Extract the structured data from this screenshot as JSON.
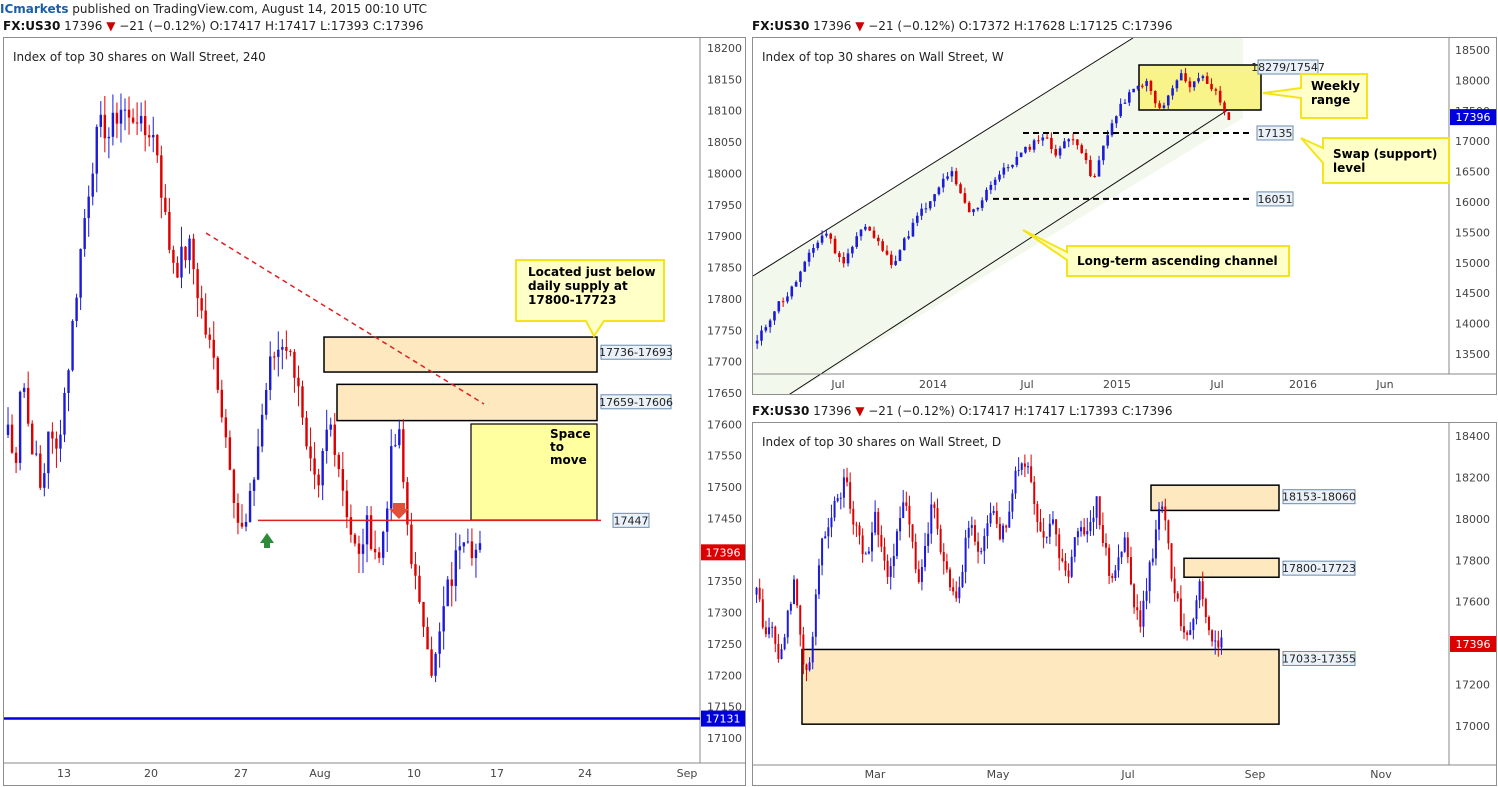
{
  "header": {
    "brand": "ICmarkets",
    "published": "published on TradingView.com, August 14, 2015 00:10 UTC"
  },
  "colors": {
    "bull": "#1c1cd8",
    "bear": "#dd0000",
    "zone_fill": "#fde8c0",
    "note_fill": "#ffffa0",
    "note_border": "#f4e41c",
    "channel_fill": "#f2f9ec",
    "blue_line": "#0000dd"
  },
  "panels": [
    {
      "id": "h4",
      "quote": {
        "symbol": "FX:US30",
        "price": "17396",
        "change": "−21 (−0.12%)",
        "o": "O:17417",
        "h": "H:17417",
        "l": "L:17393",
        "c": "C:17396"
      },
      "title": "Index of top 30 shares on Wall Street, 240",
      "price_badge": "17396",
      "level_badge": "17131"
    },
    {
      "id": "weekly",
      "quote": {
        "symbol": "FX:US30",
        "price": "17396",
        "change": "−21 (−0.12%)",
        "o": "O:17372",
        "h": "H:17628",
        "l": "L:17125",
        "c": "C:17396"
      },
      "title": "Index of top 30 shares on Wall Street, W",
      "price_badge": "17396"
    },
    {
      "id": "daily",
      "quote": {
        "symbol": "FX:US30",
        "price": "17396",
        "change": "−21 (−0.12%)",
        "o": "O:17417",
        "h": "H:17417",
        "l": "L:17393",
        "c": "C:17396"
      },
      "title": "Index of top 30 shares on Wall Street, D",
      "price_badge": "17396"
    }
  ],
  "chart_data": [
    {
      "type": "candlestick",
      "title": "Index of top 30 shares on Wall Street, 240",
      "x_ticks": [
        "13",
        "20",
        "27",
        "Aug",
        "10",
        "17",
        "24",
        "Sep"
      ],
      "y_ticks": [
        18200,
        18150,
        18100,
        18050,
        18000,
        17950,
        17900,
        17850,
        17800,
        17750,
        17700,
        17650,
        17600,
        17550,
        17500,
        17450,
        17400,
        17350,
        17300,
        17250,
        17200,
        17150,
        17100
      ],
      "ylim": [
        17070,
        18220
      ],
      "zones": [
        {
          "label": "17736-17693",
          "low": 17693,
          "high": 17736
        },
        {
          "label": "17659-17606",
          "low": 17606,
          "high": 17659
        }
      ],
      "levels": [
        {
          "label": "17447",
          "value": 17447,
          "style": "red"
        },
        {
          "label": "17131",
          "value": 17131,
          "style": "blue"
        }
      ],
      "annotations": [
        "Located just below daily supply at 17800-17723",
        "Space to move"
      ],
      "close_path": [
        17600,
        17520,
        17700,
        17600,
        17550,
        17480,
        17600,
        17540,
        17620,
        17700,
        17800,
        17900,
        17980,
        18050,
        18080,
        18060,
        18090,
        18110,
        18080,
        18100,
        18060,
        18070,
        18050,
        17950,
        17880,
        17850,
        17870,
        17880,
        17820,
        17760,
        17720,
        17680,
        17600,
        17540,
        17450,
        17420,
        17480,
        17560,
        17640,
        17700,
        17720,
        17740,
        17700,
        17680,
        17560,
        17520,
        17480,
        17580,
        17600,
        17540,
        17480,
        17420,
        17380,
        17440,
        17420,
        17380,
        17460,
        17560,
        17580,
        17460,
        17380,
        17300,
        17280,
        17200,
        17260,
        17330,
        17360,
        17420,
        17440,
        17400,
        17396
      ]
    },
    {
      "type": "candlestick",
      "title": "Index of top 30 shares on Wall Street, W",
      "x_ticks": [
        "Jul",
        "2014",
        "Jul",
        "2015",
        "Jul",
        "2016",
        "Jun"
      ],
      "y_ticks": [
        18500,
        18000,
        17500,
        17000,
        16500,
        16000,
        15500,
        15000,
        14500,
        14000,
        13500
      ],
      "ylim": [
        13250,
        18600
      ],
      "zones": [
        {
          "label": "18279/17547",
          "low": 17547,
          "high": 18279
        }
      ],
      "levels": [
        {
          "label": "17135",
          "value": 17135,
          "style": "dashed"
        },
        {
          "label": "16051",
          "value": 16051,
          "style": "dashed"
        }
      ],
      "annotations": [
        "Weekly range",
        "Swap (support) level",
        "Long-term ascending channel"
      ],
      "close_path": [
        13700,
        13900,
        14100,
        14300,
        14400,
        14500,
        14700,
        14900,
        15100,
        15300,
        15450,
        15500,
        15200,
        15000,
        15100,
        15400,
        15550,
        15600,
        15400,
        15300,
        15100,
        15000,
        15200,
        15400,
        15600,
        15800,
        15900,
        16000,
        16200,
        16400,
        16500,
        16200,
        16000,
        15800,
        15900,
        16100,
        16300,
        16400,
        16500,
        16600,
        16700,
        16800,
        16900,
        17000,
        17100,
        17000,
        16800,
        16900,
        17000,
        17100,
        16900,
        16600,
        16300,
        16700,
        17100,
        17300,
        17500,
        17700,
        17800,
        17900,
        18000,
        17800,
        17500,
        17600,
        17800,
        18000,
        18100,
        17900,
        18000,
        18100,
        17900,
        17800,
        17600,
        17400
      ]
    },
    {
      "type": "candlestick",
      "title": "Index of top 30 shares on Wall Street, D",
      "x_ticks": [
        "Mar",
        "May",
        "Jul",
        "Sep",
        "Nov"
      ],
      "y_ticks": [
        18400,
        18200,
        18000,
        17800,
        17600,
        17400,
        17200,
        17000
      ],
      "ylim": [
        16900,
        18500
      ],
      "zones": [
        {
          "label": "18153-18060",
          "low": 18060,
          "high": 18153
        },
        {
          "label": "17800-17723",
          "low": 17723,
          "high": 17800
        },
        {
          "label": "17033-17355",
          "low": 17033,
          "high": 17355
        }
      ],
      "close_path": [
        17700,
        17400,
        17500,
        17300,
        17500,
        17700,
        17400,
        17200,
        17600,
        17900,
        18000,
        18100,
        18200,
        18000,
        17900,
        17800,
        18000,
        17900,
        17700,
        17900,
        18100,
        17900,
        17700,
        17900,
        18100,
        17800,
        17700,
        17600,
        17800,
        18000,
        17800,
        17900,
        18100,
        17900,
        18000,
        18200,
        18300,
        18200,
        18000,
        17900,
        18000,
        17800,
        17700,
        17900,
        18000,
        17900,
        18100,
        17900,
        17700,
        17800,
        17900,
        17600,
        17500,
        17700,
        17900,
        18100,
        17800,
        17600,
        17400,
        17500,
        17700,
        17500,
        17400,
        17396
      ]
    }
  ]
}
